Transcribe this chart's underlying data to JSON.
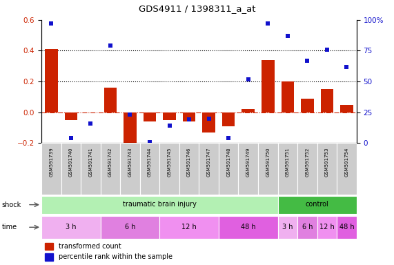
{
  "title": "GDS4911 / 1398311_a_at",
  "samples": [
    "GSM591739",
    "GSM591740",
    "GSM591741",
    "GSM591742",
    "GSM591743",
    "GSM591744",
    "GSM591745",
    "GSM591746",
    "GSM591747",
    "GSM591748",
    "GSM591749",
    "GSM591750",
    "GSM591751",
    "GSM591752",
    "GSM591753",
    "GSM591754"
  ],
  "bar_values": [
    0.41,
    -0.05,
    0.0,
    0.16,
    -0.23,
    -0.06,
    -0.05,
    -0.06,
    -0.13,
    -0.09,
    0.02,
    0.34,
    0.2,
    0.09,
    0.15,
    0.05
  ],
  "dot_values_pct": [
    97,
    4,
    16,
    79,
    23,
    1,
    14,
    19,
    20,
    4,
    52,
    97,
    87,
    67,
    76,
    62
  ],
  "bar_color": "#cc2200",
  "dot_color": "#1111cc",
  "left_ylim": [
    -0.2,
    0.6
  ],
  "right_ylim": [
    0,
    100
  ],
  "left_yticks": [
    -0.2,
    0.0,
    0.2,
    0.4,
    0.6
  ],
  "right_yticks": [
    0,
    25,
    50,
    75,
    100
  ],
  "right_yticklabels": [
    "0",
    "25",
    "50",
    "75",
    "100%"
  ],
  "dotted_hlines": [
    0.2,
    0.4
  ],
  "shock_groups": [
    {
      "label": "traumatic brain injury",
      "start": 0,
      "end": 11,
      "color": "#b3f0b3"
    },
    {
      "label": "control",
      "start": 12,
      "end": 15,
      "color": "#44bb44"
    }
  ],
  "time_groups": [
    {
      "label": "3 h",
      "start": 0,
      "end": 2,
      "color": "#f0b0f0"
    },
    {
      "label": "6 h",
      "start": 3,
      "end": 5,
      "color": "#e080e0"
    },
    {
      "label": "12 h",
      "start": 6,
      "end": 8,
      "color": "#f090f0"
    },
    {
      "label": "48 h",
      "start": 9,
      "end": 11,
      "color": "#e060e0"
    },
    {
      "label": "3 h",
      "start": 12,
      "end": 12,
      "color": "#f0b0f0"
    },
    {
      "label": "6 h",
      "start": 13,
      "end": 13,
      "color": "#e080e0"
    },
    {
      "label": "12 h",
      "start": 14,
      "end": 14,
      "color": "#f090f0"
    },
    {
      "label": "48 h",
      "start": 15,
      "end": 15,
      "color": "#e060e0"
    }
  ],
  "background_color": "#ffffff",
  "tick_bg_color": "#cccccc"
}
